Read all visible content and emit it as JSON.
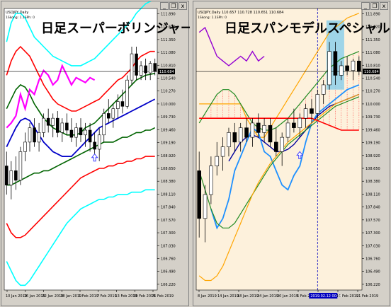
{
  "colors": {
    "left_bg": "#ffffff",
    "right_bg": "#fdf1dc",
    "bull": "#ffffff",
    "bear": "#000000",
    "candle_outline": "#000000",
    "left_colors": [
      "#00ffff",
      "#ff0000",
      "#006400",
      "#0000c8",
      "#006400",
      "#ff0000",
      "#00ffff",
      "#ff00ff"
    ],
    "right_colors": [
      "#ffa500",
      "#228b22",
      "#0000a0",
      "#1e90ff",
      "#228b22",
      "#ffa500",
      "#9400d3",
      "#ff0000"
    ],
    "kumo_fill": "#ff3030",
    "box_fill": "#87ceeb",
    "hline": "#000000",
    "price_tag_bg": "#000000",
    "price_tag_fg": "#ffffff",
    "arrow": "#4040ff",
    "date_tag_bg": "#0000c0"
  },
  "window": {
    "minimize_icon": "_",
    "restore_icon": "❐",
    "close_icon": "x"
  },
  "left": {
    "title_line1": "USDJPY,Daily",
    "title_line2": "1Skong: 1.1SPh: 0",
    "overlay_title": "日足スーパーボリンジャー",
    "price_tag": "110.684",
    "y_ticks": [
      "111.890",
      "111.620",
      "111.350",
      "111.080",
      "110.810",
      "110.540",
      "110.270",
      "110.000",
      "109.730",
      "109.460",
      "109.190",
      "108.920",
      "108.650",
      "108.380",
      "108.110",
      "107.840",
      "107.570",
      "107.300",
      "107.030",
      "106.760",
      "106.490",
      "106.220"
    ],
    "x_ticks": [
      "10 Jan 2019",
      "16 Jan 2019",
      "22 Jan 2019",
      "28 Jan 2019",
      "1 Feb 2019",
      "7 Feb 2019",
      "13 Feb 2019",
      "19 Feb 2019",
      "25 Feb 2019"
    ]
  },
  "right": {
    "title_line1": "USDJPY,Daily  110.657 110.728 110.651 110.684",
    "title_line2": "1Skong: 1.1SPh: 0",
    "overlay_title": "日足スパンモデルスペシャル",
    "price_tag": "110.684",
    "date_tag": "2019.02.12 00:00",
    "y_ticks": [
      "111.890",
      "111.620",
      "111.350",
      "111.080",
      "110.810",
      "110.540",
      "110.270",
      "110.000",
      "109.730",
      "109.460",
      "109.190",
      "108.920",
      "108.650",
      "108.380",
      "108.110",
      "107.840",
      "107.570",
      "107.300",
      "107.030",
      "106.760",
      "106.490",
      "106.220"
    ],
    "x_ticks": [
      "8 Jan 2019",
      "14 Jan 2019",
      "18 Jan 2019",
      "24 Jan 2019",
      "30 Jan 2019",
      "5 Feb 2019",
      "11 Feb 2019",
      "15 Feb 2019",
      "21 Feb 2019"
    ]
  },
  "chart_data": [
    {
      "type": "candlestick",
      "name": "日足スーパーボリンジャー",
      "ylim": [
        106.1,
        112.0
      ],
      "candles": [
        [
          108.7,
          109.0,
          108.1,
          108.3
        ],
        [
          108.3,
          108.8,
          108.0,
          108.6
        ],
        [
          108.6,
          108.9,
          108.2,
          108.4
        ],
        [
          108.4,
          109.1,
          108.3,
          109.0
        ],
        [
          109.0,
          109.4,
          108.8,
          109.2
        ],
        [
          109.2,
          109.6,
          109.0,
          109.5
        ],
        [
          109.5,
          109.7,
          109.1,
          109.2
        ],
        [
          109.2,
          109.6,
          109.0,
          109.4
        ],
        [
          109.4,
          109.8,
          109.3,
          109.7
        ],
        [
          109.7,
          109.9,
          109.4,
          109.55
        ],
        [
          109.55,
          109.8,
          109.3,
          109.7
        ],
        [
          109.7,
          109.85,
          109.3,
          109.4
        ],
        [
          109.4,
          109.7,
          109.2,
          109.6
        ],
        [
          109.6,
          109.8,
          109.35,
          109.45
        ],
        [
          109.45,
          109.7,
          109.2,
          109.3
        ],
        [
          109.3,
          109.6,
          109.1,
          109.5
        ],
        [
          109.5,
          109.7,
          109.2,
          109.35
        ],
        [
          109.35,
          109.6,
          109.1,
          109.45
        ],
        [
          109.45,
          109.6,
          109.0,
          109.2
        ],
        [
          109.2,
          109.4,
          108.9,
          109.05
        ],
        [
          109.05,
          109.5,
          108.8,
          109.35
        ],
        [
          109.35,
          109.9,
          109.2,
          109.8
        ],
        [
          109.8,
          110.1,
          109.6,
          109.7
        ],
        [
          109.7,
          110.0,
          109.5,
          109.9
        ],
        [
          109.9,
          110.2,
          109.7,
          110.05
        ],
        [
          110.05,
          110.3,
          109.8,
          109.95
        ],
        [
          109.95,
          110.6,
          109.9,
          110.5
        ],
        [
          110.5,
          111.2,
          110.4,
          111.05
        ],
        [
          111.05,
          111.2,
          110.5,
          110.6
        ],
        [
          110.6,
          110.9,
          110.5,
          110.8
        ],
        [
          110.8,
          110.95,
          110.5,
          110.65
        ],
        [
          110.65,
          110.9,
          110.5,
          110.85
        ],
        [
          110.85,
          110.95,
          110.6,
          110.68
        ]
      ],
      "lines": [
        {
          "values": [
            111.3,
            111.7,
            111.9,
            111.9,
            111.8,
            111.6,
            111.4,
            111.3,
            111.2,
            111.1,
            111.0,
            110.95,
            110.9,
            110.85,
            110.8,
            110.8,
            110.8,
            110.85,
            110.9,
            110.95,
            111.05,
            111.15,
            111.25,
            111.35,
            111.45,
            111.55,
            111.65,
            111.75,
            111.9,
            112.0,
            112.1,
            112.15,
            112.2
          ]
        },
        {
          "values": [
            110.6,
            110.9,
            111.1,
            111.2,
            111.1,
            111.0,
            110.8,
            110.6,
            110.4,
            110.25,
            110.1,
            110.0,
            109.95,
            109.9,
            109.85,
            109.85,
            109.9,
            109.95,
            110.0,
            110.05,
            110.1,
            110.2,
            110.3,
            110.4,
            110.5,
            110.55,
            110.65,
            110.75,
            110.9,
            111.0,
            111.05,
            111.1,
            111.1
          ]
        },
        {
          "values": [
            109.9,
            110.1,
            110.3,
            110.4,
            110.35,
            110.2,
            110.0,
            109.85,
            109.7,
            109.6,
            109.5,
            109.45,
            109.4,
            109.35,
            109.35,
            109.35,
            109.4,
            109.5,
            109.55,
            109.6,
            109.7,
            109.8,
            109.9,
            110.0,
            110.1,
            110.2,
            110.3,
            110.4,
            110.5,
            110.55,
            110.6,
            110.62,
            110.64
          ]
        },
        {
          "values": [
            109.1,
            109.3,
            109.5,
            109.65,
            109.7,
            109.65,
            109.5,
            109.35,
            109.2,
            109.1,
            109.0,
            108.95,
            108.9,
            108.9,
            108.9,
            109.0,
            109.1,
            109.2,
            109.3,
            109.4,
            109.5,
            109.55,
            109.6,
            109.65,
            109.7,
            109.75,
            109.8,
            109.85,
            109.9,
            109.95,
            110.0,
            110.05,
            110.1
          ]
        },
        {
          "values": [
            108.3,
            108.3,
            108.35,
            108.4,
            108.45,
            108.5,
            108.55,
            108.55,
            108.6,
            108.6,
            108.65,
            108.7,
            108.75,
            108.8,
            108.85,
            108.9,
            108.95,
            109.0,
            109.05,
            109.1,
            109.15,
            109.2,
            109.2,
            109.2,
            109.25,
            109.3,
            109.3,
            109.35,
            109.4,
            109.4,
            109.45,
            109.45,
            109.5
          ]
        },
        {
          "values": [
            107.5,
            107.3,
            107.2,
            107.2,
            107.25,
            107.35,
            107.45,
            107.55,
            107.65,
            107.75,
            107.85,
            107.95,
            108.05,
            108.15,
            108.25,
            108.35,
            108.45,
            108.5,
            108.55,
            108.6,
            108.65,
            108.65,
            108.7,
            108.7,
            108.75,
            108.75,
            108.8,
            108.8,
            108.85,
            108.85,
            108.9,
            108.9,
            108.9
          ]
        },
        {
          "values": [
            106.7,
            106.5,
            106.3,
            106.2,
            106.2,
            106.3,
            106.45,
            106.6,
            106.75,
            106.9,
            107.05,
            107.2,
            107.35,
            107.5,
            107.6,
            107.7,
            107.8,
            107.85,
            107.9,
            107.95,
            108.0,
            108.0,
            108.05,
            108.05,
            108.1,
            108.1,
            108.1,
            108.15,
            108.15,
            108.15,
            108.2,
            108.2,
            108.2
          ]
        },
        {
          "values": [
            109.5,
            109.6,
            109.75,
            110.2,
            109.9,
            110.3,
            110.2,
            110.5,
            110.7,
            110.6,
            110.4,
            110.5,
            110.8,
            110.6,
            110.4,
            110.55,
            110.5,
            110.45,
            110.55,
            110.5,
            null,
            null,
            null,
            null,
            null,
            null,
            null,
            null,
            null,
            null,
            null,
            null,
            null
          ]
        }
      ]
    },
    {
      "type": "candlestick",
      "name": "日足スパンモデルスペシャル",
      "ylim": [
        106.1,
        112.0
      ],
      "candles": [
        [
          108.6,
          109.0,
          107.2,
          107.6
        ],
        [
          107.6,
          108.3,
          107.1,
          108.1
        ],
        [
          108.1,
          108.9,
          107.9,
          108.7
        ],
        [
          108.7,
          109.2,
          108.5,
          108.9
        ],
        [
          108.9,
          109.3,
          108.6,
          109.1
        ],
        [
          109.1,
          109.5,
          108.9,
          109.4
        ],
        [
          109.4,
          109.6,
          109.0,
          109.2
        ],
        [
          109.2,
          109.6,
          109.0,
          109.5
        ],
        [
          109.5,
          109.7,
          109.2,
          109.3
        ],
        [
          109.3,
          109.7,
          109.1,
          109.6
        ],
        [
          109.6,
          109.8,
          109.3,
          109.4
        ],
        [
          109.4,
          109.7,
          109.2,
          109.55
        ],
        [
          109.55,
          109.7,
          109.1,
          109.2
        ],
        [
          109.2,
          109.5,
          108.9,
          109.0
        ],
        [
          109.0,
          109.4,
          108.7,
          109.3
        ],
        [
          109.3,
          109.7,
          109.2,
          109.6
        ],
        [
          109.6,
          109.9,
          109.4,
          109.5
        ],
        [
          109.5,
          109.8,
          109.3,
          109.7
        ],
        [
          109.7,
          110.0,
          109.5,
          109.9
        ],
        [
          109.9,
          110.1,
          109.6,
          109.8
        ],
        [
          109.8,
          110.3,
          109.7,
          110.2
        ],
        [
          110.2,
          110.5,
          110.0,
          110.4
        ],
        [
          110.4,
          111.3,
          110.3,
          111.1
        ],
        [
          111.1,
          111.3,
          110.4,
          110.6
        ],
        [
          110.6,
          110.9,
          110.5,
          110.8
        ],
        [
          110.8,
          111.0,
          110.6,
          110.7
        ],
        [
          110.7,
          110.95,
          110.5,
          110.9
        ],
        [
          110.9,
          111.0,
          110.6,
          110.68
        ]
      ],
      "lines": [
        {
          "values": [
            110.0,
            110.0,
            110.0,
            110.0,
            110.0,
            110.0,
            110.0,
            110.0,
            109.7,
            109.5,
            109.3,
            109.3,
            109.5,
            109.7,
            109.9,
            110.1,
            110.3,
            110.5,
            110.7,
            110.9,
            111.1,
            111.3,
            111.5,
            111.6,
            111.7,
            111.8,
            111.85,
            111.9
          ]
        },
        {
          "values": [
            109.6,
            109.8,
            110.0,
            110.2,
            110.3,
            110.3,
            110.2,
            110.0,
            109.8,
            109.6,
            109.5,
            109.45,
            109.45,
            109.5,
            109.6,
            109.7,
            109.85,
            110.0,
            110.15,
            110.3,
            110.45,
            110.6,
            110.75,
            110.85,
            110.95,
            111.0,
            111.05,
            111.1
          ]
        },
        {
          "values": [
            null,
            null,
            null,
            null,
            null,
            108.8,
            109.0,
            109.2,
            109.3,
            109.35,
            109.3,
            109.2,
            109.1,
            109.0,
            109.0,
            109.05,
            109.15,
            109.3,
            109.45,
            109.6,
            109.75,
            109.85,
            109.95,
            110.0,
            110.05,
            110.1,
            110.15,
            110.2
          ]
        },
        {
          "values": [
            null,
            null,
            107.8,
            107.4,
            107.6,
            108.0,
            108.6,
            108.9,
            109.2,
            109.5,
            109.4,
            109.0,
            108.9,
            108.6,
            108.3,
            108.2,
            108.5,
            108.7,
            109.2,
            109.6,
            109.8,
            109.9,
            110.0,
            110.1,
            110.2,
            110.3,
            110.35,
            110.4
          ]
        },
        {
          "values": [
            108.6,
            108.2,
            107.8,
            107.5,
            107.4,
            107.4,
            107.5,
            107.7,
            107.9,
            108.1,
            108.3,
            108.5,
            108.7,
            108.85,
            109.0,
            109.15,
            109.25,
            109.35,
            109.45,
            109.55,
            109.65,
            109.75,
            109.85,
            109.95,
            110.0,
            110.05,
            110.1,
            110.15
          ]
        },
        {
          "values": [
            106.4,
            106.3,
            106.3,
            106.4,
            106.6,
            106.9,
            107.2,
            107.5,
            107.8,
            108.1,
            108.35,
            108.55,
            108.75,
            108.9,
            109.05,
            109.2,
            109.3,
            109.4,
            109.5,
            109.6,
            109.7,
            109.8,
            109.9,
            110.0,
            110.05,
            110.1,
            110.15,
            110.2
          ]
        },
        {
          "values": [
            111.5,
            111.6,
            111.3,
            111.0,
            110.9,
            110.8,
            110.9,
            111.0,
            110.9,
            111.1,
            110.9,
            111.0,
            null,
            null,
            null,
            null,
            null,
            null,
            null,
            null,
            null,
            null,
            null,
            null,
            null,
            null,
            null,
            null
          ]
        },
        {
          "values": [
            109.7,
            109.7,
            109.7,
            109.7,
            109.7,
            109.7,
            109.7,
            109.7,
            109.7,
            109.7,
            109.7,
            109.7,
            109.7,
            109.7,
            109.7,
            109.7,
            109.7,
            109.7,
            109.7,
            109.7,
            109.65,
            109.6,
            109.55,
            109.5,
            109.45,
            109.45,
            109.45,
            109.45
          ]
        }
      ]
    }
  ]
}
